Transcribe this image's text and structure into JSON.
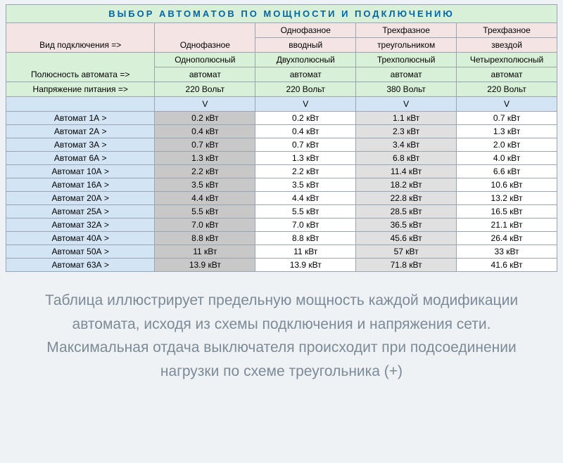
{
  "title": "ВЫБОР АВТОМАТОВ ПО МОЩНОСТИ И ПОДКЛЮЧЕНИЮ",
  "header_rows": [
    {
      "label": "Вид подключения =>",
      "cells": [
        "Однофазное",
        "Однофазное вводный",
        "Трехфазное треугольником",
        "Трехфазное звездой"
      ],
      "label_bg": "pink",
      "cells_bg": "pink",
      "twoLine": [
        false,
        true,
        true,
        true
      ]
    },
    {
      "label": "Полюсность автомата =>",
      "cells": [
        "Однополюсный автомат",
        "Двухполюсный автомат",
        "Трехполюсный автомат",
        "Четырехполюсный автомат"
      ],
      "label_bg": "green",
      "cells_bg": "green",
      "twoLine": [
        true,
        true,
        true,
        true
      ]
    },
    {
      "label": "Напряжение питания =>",
      "cells": [
        "220 Вольт",
        "220 Вольт",
        "380 Вольт",
        "220 Вольт"
      ],
      "label_bg": "green",
      "cells_bg": "green"
    },
    {
      "label": "",
      "cells": [
        "V",
        "V",
        "V",
        "V"
      ],
      "label_bg": "blue",
      "cells_bg": "blue"
    }
  ],
  "data_columns_shade": [
    "gray",
    "white",
    "lgray",
    "white"
  ],
  "rows": [
    {
      "label": "Автомат 1А >",
      "v": [
        "0.2 кВт",
        "0.2 кВт",
        "1.1 кВт",
        "0.7 кВт"
      ]
    },
    {
      "label": "Автомат 2А >",
      "v": [
        "0.4 кВт",
        "0.4 кВт",
        "2.3 кВт",
        "1.3 кВт"
      ]
    },
    {
      "label": "Автомат 3А >",
      "v": [
        "0.7 кВт",
        "0.7 кВт",
        "3.4 кВт",
        "2.0 кВт"
      ]
    },
    {
      "label": "Автомат 6А >",
      "v": [
        "1.3 кВт",
        "1.3 кВт",
        "6.8 кВт",
        "4.0 кВт"
      ]
    },
    {
      "label": "Автомат 10А >",
      "v": [
        "2.2 кВт",
        "2.2 кВт",
        "11.4 кВт",
        "6.6 кВт"
      ]
    },
    {
      "label": "Автомат 16А >",
      "v": [
        "3.5 кВт",
        "3.5 кВт",
        "18.2 кВт",
        "10.6 кВт"
      ]
    },
    {
      "label": "Автомат 20А >",
      "v": [
        "4.4 кВт",
        "4.4 кВт",
        "22.8 кВт",
        "13.2 кВт"
      ]
    },
    {
      "label": "Автомат 25А >",
      "v": [
        "5.5 кВт",
        "5.5 кВт",
        "28.5 кВт",
        "16.5 кВт"
      ]
    },
    {
      "label": "Автомат 32А >",
      "v": [
        "7.0 кВт",
        "7.0 кВт",
        "36.5 кВт",
        "21.1 кВт"
      ]
    },
    {
      "label": "Автомат 40А >",
      "v": [
        "8.8 кВт",
        "8.8 кВт",
        "45.6 кВт",
        "26.4 кВт"
      ]
    },
    {
      "label": "Автомат 50А >",
      "v": [
        "11 кВт",
        "11 кВт",
        "57 кВт",
        "33 кВт"
      ]
    },
    {
      "label": "Автомат 63А >",
      "v": [
        "13.9 кВт",
        "13.9 кВт",
        "71.8 кВт",
        "41.6 кВт"
      ]
    }
  ],
  "caption": "Таблица иллюстрирует предельную мощность каждой модификации автомата, исходя из схемы подключения и напряжения сети. Максимальная отдача выключателя происходит при подсоединении нагрузки по схеме треугольника (+)",
  "colors": {
    "page_bg": "#eef2f5",
    "pink": "#f5e4e4",
    "green": "#d8f0d8",
    "blue": "#d3e5f5",
    "gray": "#c8c8c8",
    "lgray": "#e0e0e0",
    "white": "#ffffff",
    "border": "#9aa5b1",
    "title_text": "#0066aa",
    "caption_text": "#7d8a97"
  }
}
